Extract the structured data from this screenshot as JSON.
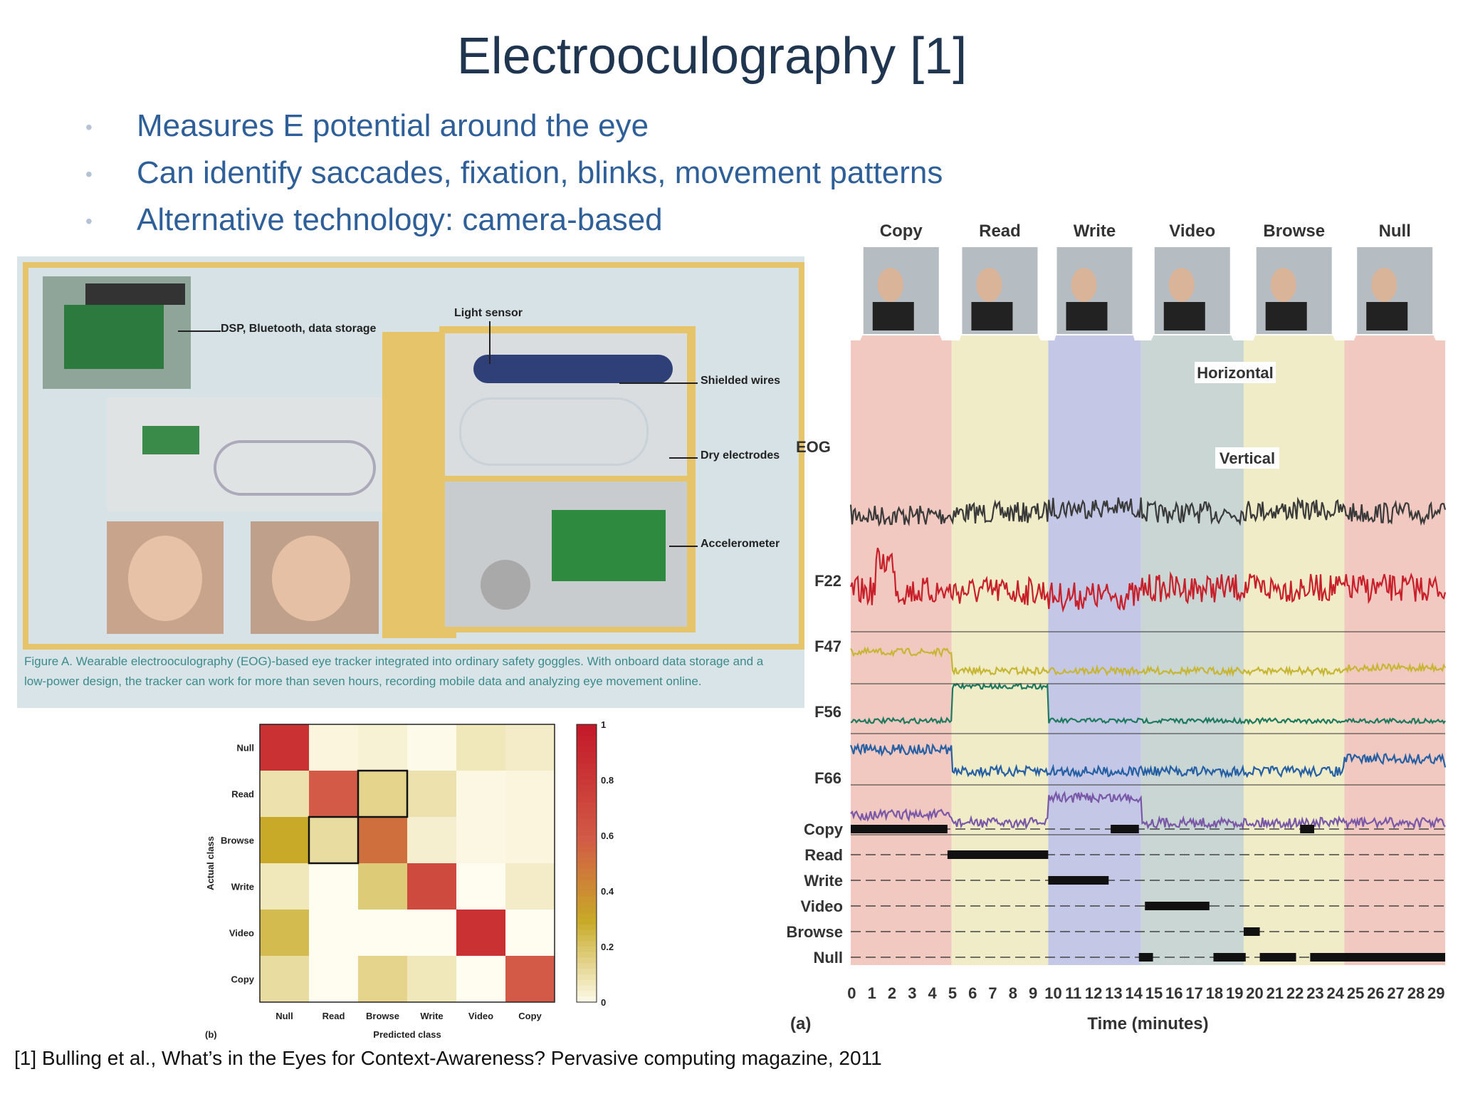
{
  "slide": {
    "title": "Electrooculography [1]",
    "bullets": [
      "Measures E potential around the eye",
      "Can identify saccades, fixation, blinks, movement patterns",
      "Alternative technology: camera-based"
    ],
    "reference": "[1] Bulling et al., What’s in the Eyes for Context-Awareness? Pervasive computing magazine, 2011"
  },
  "figure_a": {
    "callouts": {
      "dsp": "DSP, Bluetooth, data storage",
      "light": "Light sensor",
      "wires": "Shielded wires",
      "electrodes": "Dry electrodes",
      "accel": "Accelerometer"
    },
    "caption": "Figure A. Wearable electrooculography (EOG)-based eye tracker integrated into ordinary safety goggles. With onboard data storage and a low-power design, the tracker can work for more than seven hours, recording mobile data and analyzing eye movement online.",
    "frame_color": "#e6c46a"
  },
  "chart_data": [
    {
      "type": "heatmap",
      "label": "(b)",
      "xlabel": "Predicted class",
      "ylabel": "Actual class",
      "x_categories": [
        "Null",
        "Read",
        "Browse",
        "Write",
        "Video",
        "Copy"
      ],
      "y_categories": [
        "Null",
        "Read",
        "Browse",
        "Write",
        "Video",
        "Copy"
      ],
      "values": [
        [
          0.85,
          0.03,
          0.04,
          0.01,
          0.08,
          0.06
        ],
        [
          0.1,
          0.6,
          0.15,
          0.1,
          0.02,
          0.03
        ],
        [
          0.3,
          0.12,
          0.52,
          0.05,
          0.02,
          0.03
        ],
        [
          0.08,
          0.0,
          0.18,
          0.7,
          0.0,
          0.06
        ],
        [
          0.24,
          0.0,
          0.0,
          0.0,
          0.85,
          0.0
        ],
        [
          0.12,
          0.0,
          0.15,
          0.08,
          0.0,
          0.6
        ]
      ],
      "highlighted_cells": [
        [
          1,
          2
        ],
        [
          2,
          1
        ]
      ],
      "colorbar_ticks": [
        "0",
        "0.2",
        "0.4",
        "0.6",
        "0.8",
        "1"
      ],
      "colorbar_range": [
        0,
        1
      ]
    },
    {
      "type": "line",
      "label": "(a)",
      "xlabel": "Time (minutes)",
      "x_ticks": [
        0,
        1,
        2,
        3,
        4,
        5,
        6,
        7,
        8,
        9,
        10,
        11,
        12,
        13,
        14,
        15,
        16,
        17,
        18,
        19,
        20,
        21,
        22,
        23,
        24,
        25,
        26,
        27,
        28,
        29
      ],
      "xlim": [
        0,
        29.5
      ],
      "activities": [
        "Copy",
        "Read",
        "Write",
        "Video",
        "Browse",
        "Null"
      ],
      "segments": [
        {
          "activity": "Copy",
          "start": 0,
          "end": 5.0,
          "color": "#f2c9c1"
        },
        {
          "activity": "Read",
          "start": 5.0,
          "end": 9.8,
          "color": "#f0ecc8"
        },
        {
          "activity": "Write",
          "start": 9.8,
          "end": 14.4,
          "color": "#c4c8e6"
        },
        {
          "activity": "Video",
          "start": 14.4,
          "end": 19.5,
          "color": "#c9d6d3"
        },
        {
          "activity": "Browse",
          "start": 19.5,
          "end": 24.5,
          "color": "#f0ecc8"
        },
        {
          "activity": "Null",
          "start": 24.5,
          "end": 29.5,
          "color": "#f2c9c1"
        }
      ],
      "signal_group_label": "EOG",
      "series": [
        {
          "name": "Horizontal",
          "color": "#3a3a3a"
        },
        {
          "name": "Vertical",
          "color": "#c8202a"
        },
        {
          "name": "F22",
          "color": "#c7b633"
        },
        {
          "name": "F47",
          "color": "#1e7a5e"
        },
        {
          "name": "F56",
          "color": "#2660a4"
        },
        {
          "name": "F66",
          "color": "#7a58a8"
        }
      ],
      "recognized_intervals": [
        {
          "activity": "Copy",
          "intervals": [
            [
              0,
              4.8
            ],
            [
              12.9,
              14.3
            ],
            [
              22.3,
              23.0
            ]
          ]
        },
        {
          "activity": "Read",
          "intervals": [
            [
              4.8,
              9.8
            ]
          ]
        },
        {
          "activity": "Write",
          "intervals": [
            [
              9.8,
              12.8
            ]
          ]
        },
        {
          "activity": "Video",
          "intervals": [
            [
              14.6,
              17.8
            ]
          ]
        },
        {
          "activity": "Browse",
          "intervals": [
            [
              19.5,
              20.3
            ]
          ]
        },
        {
          "activity": "Null",
          "intervals": [
            [
              14.3,
              15.0
            ],
            [
              18.0,
              19.6
            ],
            [
              20.3,
              22.1
            ],
            [
              22.8,
              29.5
            ]
          ]
        }
      ]
    }
  ]
}
